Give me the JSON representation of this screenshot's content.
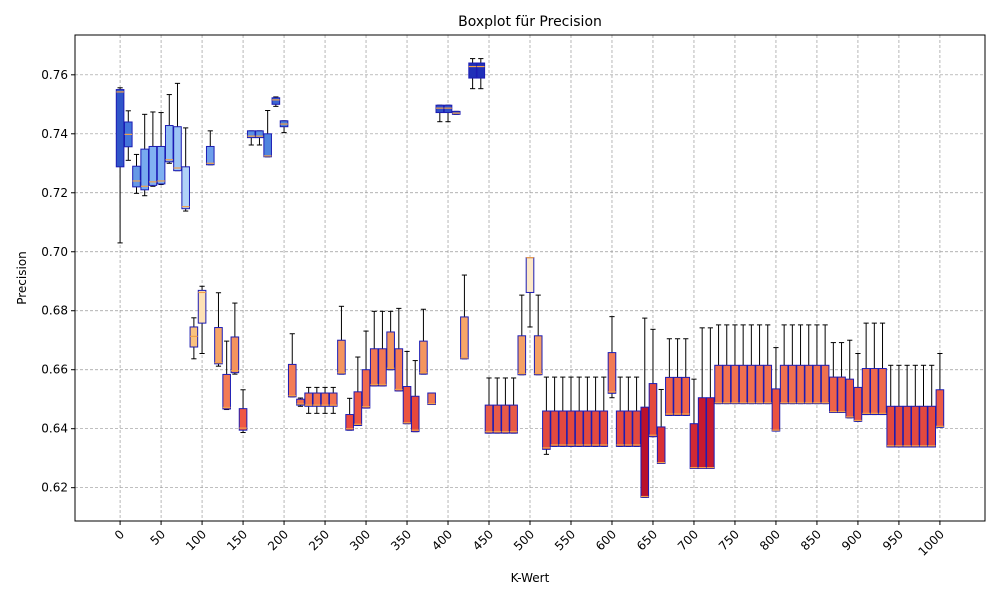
{
  "chart_data": {
    "type": "box",
    "title": "Boxplot für Precision",
    "xlabel": "K-Wert",
    "ylabel": "Precision",
    "xlim": [
      -55,
      1055
    ],
    "ylim": [
      0.6087,
      0.7735
    ],
    "grid": true,
    "x_ticks": [
      0,
      50,
      100,
      150,
      200,
      250,
      300,
      350,
      400,
      450,
      500,
      550,
      600,
      650,
      700,
      750,
      800,
      850,
      900,
      950,
      1000
    ],
    "y_ticks": [
      0.62,
      0.64,
      0.66,
      0.68,
      0.7,
      0.72,
      0.74,
      0.76
    ],
    "y_tick_labels": [
      "0.62",
      "0.64",
      "0.66",
      "0.68",
      "0.70",
      "0.72",
      "0.74",
      "0.76"
    ],
    "colors": {
      "median": "#f2a14b",
      "edge": "#1c1cb4",
      "whisker": "#000000",
      "grid": "#999999"
    },
    "boxes": [
      {
        "x": 0,
        "q1": 0.7288,
        "med": 0.7542,
        "q3": 0.755,
        "wlo": 0.703,
        "whi": 0.7556,
        "color": "#2f55c9"
      },
      {
        "x": 10,
        "q1": 0.7356,
        "med": 0.7398,
        "q3": 0.744,
        "wlo": 0.731,
        "whi": 0.7478,
        "color": "#4475db"
      },
      {
        "x": 20,
        "q1": 0.722,
        "med": 0.724,
        "q3": 0.729,
        "wlo": 0.7198,
        "whi": 0.733,
        "color": "#6699e6"
      },
      {
        "x": 30,
        "q1": 0.721,
        "med": 0.7222,
        "q3": 0.7348,
        "wlo": 0.719,
        "whi": 0.7466,
        "color": "#77aaef"
      },
      {
        "x": 40,
        "q1": 0.7225,
        "med": 0.7237,
        "q3": 0.7357,
        "wlo": 0.7222,
        "whi": 0.7474,
        "color": "#82b2f2"
      },
      {
        "x": 50,
        "q1": 0.723,
        "med": 0.724,
        "q3": 0.7357,
        "wlo": 0.7228,
        "whi": 0.7472,
        "color": "#7fb0f1"
      },
      {
        "x": 60,
        "q1": 0.7305,
        "med": 0.7312,
        "q3": 0.7428,
        "wlo": 0.73,
        "whi": 0.7533,
        "color": "#8fbcf4"
      },
      {
        "x": 70,
        "q1": 0.7275,
        "med": 0.7284,
        "q3": 0.7424,
        "wlo": 0.7275,
        "whi": 0.7571,
        "color": "#9cc4f5"
      },
      {
        "x": 80,
        "q1": 0.7146,
        "med": 0.7153,
        "q3": 0.7288,
        "wlo": 0.7138,
        "whi": 0.742,
        "color": "#b0d2f8"
      },
      {
        "x": 90,
        "q1": 0.6677,
        "med": 0.6713,
        "q3": 0.6745,
        "wlo": 0.6637,
        "whi": 0.6776,
        "color": "#fac27f"
      },
      {
        "x": 100,
        "q1": 0.6758,
        "med": 0.6862,
        "q3": 0.6869,
        "wlo": 0.6655,
        "whi": 0.6883,
        "color": "#fde1b5"
      },
      {
        "x": 110,
        "q1": 0.7295,
        "med": 0.73,
        "q3": 0.7357,
        "wlo": 0.7295,
        "whi": 0.741,
        "color": "#6d9feb"
      },
      {
        "x": 120,
        "q1": 0.662,
        "med": 0.6624,
        "q3": 0.6743,
        "wlo": 0.6612,
        "whi": 0.6861,
        "color": "#f7a668"
      },
      {
        "x": 130,
        "q1": 0.6467,
        "med": 0.6472,
        "q3": 0.6584,
        "wlo": 0.6465,
        "whi": 0.6697,
        "color": "#f37b55"
      },
      {
        "x": 140,
        "q1": 0.659,
        "med": 0.6597,
        "q3": 0.6711,
        "wlo": 0.6585,
        "whi": 0.6826,
        "color": "#f4925e"
      },
      {
        "x": 150,
        "q1": 0.6395,
        "med": 0.6402,
        "q3": 0.6468,
        "wlo": 0.6387,
        "whi": 0.6532,
        "color": "#ef5844"
      },
      {
        "x": 160,
        "q1": 0.7387,
        "med": 0.7392,
        "q3": 0.741,
        "wlo": 0.7362,
        "whi": 0.741,
        "color": "#5a8ee3"
      },
      {
        "x": 170,
        "q1": 0.7387,
        "med": 0.7392,
        "q3": 0.741,
        "wlo": 0.7362,
        "whi": 0.741,
        "color": "#5a8ee3"
      },
      {
        "x": 180,
        "q1": 0.7322,
        "med": 0.7325,
        "q3": 0.74,
        "wlo": 0.7322,
        "whi": 0.7479,
        "color": "#4f84de"
      },
      {
        "x": 190,
        "q1": 0.75,
        "med": 0.7515,
        "q3": 0.7522,
        "wlo": 0.7493,
        "whi": 0.7525,
        "color": "#3a66d3"
      },
      {
        "x": 200,
        "q1": 0.7424,
        "med": 0.7433,
        "q3": 0.7444,
        "wlo": 0.7404,
        "whi": 0.7444,
        "color": "#4b7fdc"
      },
      {
        "x": 210,
        "q1": 0.6508,
        "med": 0.6512,
        "q3": 0.6618,
        "wlo": 0.6508,
        "whi": 0.6722,
        "color": "#f37c56"
      },
      {
        "x": 220,
        "q1": 0.648,
        "med": 0.6484,
        "q3": 0.65,
        "wlo": 0.6476,
        "whi": 0.6504,
        "color": "#f06c4e"
      },
      {
        "x": 230,
        "q1": 0.6476,
        "med": 0.648,
        "q3": 0.6521,
        "wlo": 0.6452,
        "whi": 0.654,
        "color": "#f17150"
      },
      {
        "x": 240,
        "q1": 0.6476,
        "med": 0.648,
        "q3": 0.6521,
        "wlo": 0.6452,
        "whi": 0.654,
        "color": "#f17150"
      },
      {
        "x": 250,
        "q1": 0.6476,
        "med": 0.648,
        "q3": 0.6521,
        "wlo": 0.6452,
        "whi": 0.654,
        "color": "#f17150"
      },
      {
        "x": 260,
        "q1": 0.6476,
        "med": 0.648,
        "q3": 0.6521,
        "wlo": 0.6452,
        "whi": 0.654,
        "color": "#f17150"
      },
      {
        "x": 270,
        "q1": 0.6585,
        "med": 0.659,
        "q3": 0.67,
        "wlo": 0.6585,
        "whi": 0.6815,
        "color": "#f4955f"
      },
      {
        "x": 280,
        "q1": 0.6395,
        "med": 0.64,
        "q3": 0.6448,
        "wlo": 0.6395,
        "whi": 0.6503,
        "color": "#ec4a3f"
      },
      {
        "x": 290,
        "q1": 0.6411,
        "med": 0.6415,
        "q3": 0.6525,
        "wlo": 0.6411,
        "whi": 0.6643,
        "color": "#ee5843"
      },
      {
        "x": 300,
        "q1": 0.647,
        "med": 0.6475,
        "q3": 0.66,
        "wlo": 0.647,
        "whi": 0.6731,
        "color": "#f16a4d"
      },
      {
        "x": 310,
        "q1": 0.6545,
        "med": 0.655,
        "q3": 0.6671,
        "wlo": 0.6545,
        "whi": 0.6798,
        "color": "#f27954"
      },
      {
        "x": 320,
        "q1": 0.6545,
        "med": 0.655,
        "q3": 0.6671,
        "wlo": 0.6545,
        "whi": 0.6798,
        "color": "#f27954"
      },
      {
        "x": 330,
        "q1": 0.66,
        "med": 0.6605,
        "q3": 0.6728,
        "wlo": 0.66,
        "whi": 0.6798,
        "color": "#f49560"
      },
      {
        "x": 340,
        "q1": 0.6528,
        "med": 0.6533,
        "q3": 0.6671,
        "wlo": 0.6528,
        "whi": 0.6808,
        "color": "#f27b55"
      },
      {
        "x": 350,
        "q1": 0.6417,
        "med": 0.642,
        "q3": 0.6543,
        "wlo": 0.6417,
        "whi": 0.6662,
        "color": "#ea5240"
      },
      {
        "x": 360,
        "q1": 0.639,
        "med": 0.6395,
        "q3": 0.651,
        "wlo": 0.639,
        "whi": 0.6631,
        "color": "#e8473c"
      },
      {
        "x": 370,
        "q1": 0.6585,
        "med": 0.659,
        "q3": 0.6697,
        "wlo": 0.6585,
        "whi": 0.6805,
        "color": "#f4955f"
      },
      {
        "x": 380,
        "q1": 0.6482,
        "med": 0.6485,
        "q3": 0.6521,
        "wlo": 0.6482,
        "whi": 0.6521,
        "color": "#f17851"
      },
      {
        "x": 390,
        "q1": 0.7472,
        "med": 0.7487,
        "q3": 0.7497,
        "wlo": 0.7441,
        "whi": 0.7497,
        "color": "#2f4ec8"
      },
      {
        "x": 400,
        "q1": 0.7472,
        "med": 0.7487,
        "q3": 0.7497,
        "wlo": 0.7441,
        "whi": 0.7497,
        "color": "#2f4ec8"
      },
      {
        "x": 410,
        "q1": 0.7466,
        "med": 0.747,
        "q3": 0.7476,
        "wlo": 0.7466,
        "whi": 0.7476,
        "color": "#3558cc"
      },
      {
        "x": 420,
        "q1": 0.6637,
        "med": 0.664,
        "q3": 0.6779,
        "wlo": 0.6637,
        "whi": 0.6921,
        "color": "#f7a668"
      },
      {
        "x": 430,
        "q1": 0.7589,
        "med": 0.7628,
        "q3": 0.764,
        "wlo": 0.7553,
        "whi": 0.7655,
        "color": "#1f2fb8"
      },
      {
        "x": 440,
        "q1": 0.7589,
        "med": 0.7628,
        "q3": 0.764,
        "wlo": 0.7553,
        "whi": 0.7655,
        "color": "#1f2fb8"
      },
      {
        "x": 450,
        "q1": 0.6385,
        "med": 0.639,
        "q3": 0.648,
        "wlo": 0.6385,
        "whi": 0.6572,
        "color": "#e85a48"
      },
      {
        "x": 460,
        "q1": 0.6385,
        "med": 0.639,
        "q3": 0.648,
        "wlo": 0.6385,
        "whi": 0.6572,
        "color": "#e85a48"
      },
      {
        "x": 470,
        "q1": 0.6385,
        "med": 0.639,
        "q3": 0.648,
        "wlo": 0.6385,
        "whi": 0.6572,
        "color": "#e85a48"
      },
      {
        "x": 480,
        "q1": 0.6385,
        "med": 0.639,
        "q3": 0.648,
        "wlo": 0.6385,
        "whi": 0.6572,
        "color": "#e85a48"
      },
      {
        "x": 490,
        "q1": 0.6583,
        "med": 0.6587,
        "q3": 0.6715,
        "wlo": 0.6583,
        "whi": 0.6853,
        "color": "#f5a065"
      },
      {
        "x": 500,
        "q1": 0.6862,
        "med": 0.698,
        "q3": 0.698,
        "wlo": 0.6745,
        "whi": 0.698,
        "color": "#fde9c9"
      },
      {
        "x": 510,
        "q1": 0.6583,
        "med": 0.6587,
        "q3": 0.6715,
        "wlo": 0.6583,
        "whi": 0.6853,
        "color": "#f5a065"
      },
      {
        "x": 520,
        "q1": 0.633,
        "med": 0.6335,
        "q3": 0.646,
        "wlo": 0.6313,
        "whi": 0.6575,
        "color": "#e3493f"
      },
      {
        "x": 530,
        "q1": 0.634,
        "med": 0.6345,
        "q3": 0.646,
        "wlo": 0.634,
        "whi": 0.6575,
        "color": "#e3493f"
      },
      {
        "x": 540,
        "q1": 0.634,
        "med": 0.6345,
        "q3": 0.646,
        "wlo": 0.634,
        "whi": 0.6575,
        "color": "#e3493f"
      },
      {
        "x": 550,
        "q1": 0.634,
        "med": 0.6345,
        "q3": 0.646,
        "wlo": 0.634,
        "whi": 0.6575,
        "color": "#e3493f"
      },
      {
        "x": 560,
        "q1": 0.634,
        "med": 0.6345,
        "q3": 0.646,
        "wlo": 0.634,
        "whi": 0.6575,
        "color": "#e3493f"
      },
      {
        "x": 570,
        "q1": 0.634,
        "med": 0.6345,
        "q3": 0.646,
        "wlo": 0.634,
        "whi": 0.6575,
        "color": "#e3493f"
      },
      {
        "x": 580,
        "q1": 0.634,
        "med": 0.6345,
        "q3": 0.646,
        "wlo": 0.634,
        "whi": 0.6575,
        "color": "#e3493f"
      },
      {
        "x": 590,
        "q1": 0.634,
        "med": 0.6345,
        "q3": 0.646,
        "wlo": 0.634,
        "whi": 0.6575,
        "color": "#e3493f"
      },
      {
        "x": 600,
        "q1": 0.652,
        "med": 0.6525,
        "q3": 0.6658,
        "wlo": 0.6505,
        "whi": 0.678,
        "color": "#f27a55"
      },
      {
        "x": 610,
        "q1": 0.634,
        "med": 0.6345,
        "q3": 0.646,
        "wlo": 0.634,
        "whi": 0.6575,
        "color": "#e3493f"
      },
      {
        "x": 620,
        "q1": 0.634,
        "med": 0.6345,
        "q3": 0.646,
        "wlo": 0.634,
        "whi": 0.6575,
        "color": "#e3493f"
      },
      {
        "x": 630,
        "q1": 0.634,
        "med": 0.6345,
        "q3": 0.646,
        "wlo": 0.634,
        "whi": 0.6575,
        "color": "#e3493f"
      },
      {
        "x": 640,
        "q1": 0.6167,
        "med": 0.617,
        "q3": 0.6473,
        "wlo": 0.6167,
        "whi": 0.6775,
        "color": "#b9112c"
      },
      {
        "x": 650,
        "q1": 0.6373,
        "med": 0.6378,
        "q3": 0.6553,
        "wlo": 0.6373,
        "whi": 0.6737,
        "color": "#e44a3f"
      },
      {
        "x": 660,
        "q1": 0.6282,
        "med": 0.6285,
        "q3": 0.6406,
        "wlo": 0.6282,
        "whi": 0.6533,
        "color": "#d92f35"
      },
      {
        "x": 670,
        "q1": 0.6445,
        "med": 0.645,
        "q3": 0.6574,
        "wlo": 0.6445,
        "whi": 0.6705,
        "color": "#ee6349"
      },
      {
        "x": 680,
        "q1": 0.6445,
        "med": 0.645,
        "q3": 0.6574,
        "wlo": 0.6445,
        "whi": 0.6705,
        "color": "#ee6349"
      },
      {
        "x": 690,
        "q1": 0.6445,
        "med": 0.645,
        "q3": 0.6574,
        "wlo": 0.6445,
        "whi": 0.6705,
        "color": "#ee6349"
      },
      {
        "x": 700,
        "q1": 0.6265,
        "med": 0.6268,
        "q3": 0.6417,
        "wlo": 0.6265,
        "whi": 0.6568,
        "color": "#d12933"
      },
      {
        "x": 710,
        "q1": 0.6265,
        "med": 0.6268,
        "q3": 0.6505,
        "wlo": 0.6265,
        "whi": 0.6742,
        "color": "#c81a2e"
      },
      {
        "x": 720,
        "q1": 0.6265,
        "med": 0.6268,
        "q3": 0.6505,
        "wlo": 0.6265,
        "whi": 0.6742,
        "color": "#c81a2e"
      },
      {
        "x": 730,
        "q1": 0.6485,
        "med": 0.6488,
        "q3": 0.6615,
        "wlo": 0.6485,
        "whi": 0.6752,
        "color": "#f0704f"
      },
      {
        "x": 740,
        "q1": 0.6485,
        "med": 0.6488,
        "q3": 0.6615,
        "wlo": 0.6485,
        "whi": 0.6752,
        "color": "#f0704f"
      },
      {
        "x": 750,
        "q1": 0.6485,
        "med": 0.6488,
        "q3": 0.6615,
        "wlo": 0.6485,
        "whi": 0.6752,
        "color": "#f0704f"
      },
      {
        "x": 760,
        "q1": 0.6485,
        "med": 0.6488,
        "q3": 0.6615,
        "wlo": 0.6485,
        "whi": 0.6752,
        "color": "#f0704f"
      },
      {
        "x": 770,
        "q1": 0.6485,
        "med": 0.6488,
        "q3": 0.6615,
        "wlo": 0.6485,
        "whi": 0.6752,
        "color": "#f0704f"
      },
      {
        "x": 780,
        "q1": 0.6485,
        "med": 0.6488,
        "q3": 0.6615,
        "wlo": 0.6485,
        "whi": 0.6752,
        "color": "#f0704f"
      },
      {
        "x": 790,
        "q1": 0.6485,
        "med": 0.6488,
        "q3": 0.6615,
        "wlo": 0.6485,
        "whi": 0.6752,
        "color": "#f0704f"
      },
      {
        "x": 800,
        "q1": 0.6392,
        "med": 0.6395,
        "q3": 0.6535,
        "wlo": 0.6392,
        "whi": 0.6675,
        "color": "#ea5240"
      },
      {
        "x": 810,
        "q1": 0.6485,
        "med": 0.6488,
        "q3": 0.6615,
        "wlo": 0.6485,
        "whi": 0.6752,
        "color": "#f0704f"
      },
      {
        "x": 820,
        "q1": 0.6485,
        "med": 0.6488,
        "q3": 0.6615,
        "wlo": 0.6485,
        "whi": 0.6752,
        "color": "#f0704f"
      },
      {
        "x": 830,
        "q1": 0.6485,
        "med": 0.6488,
        "q3": 0.6615,
        "wlo": 0.6485,
        "whi": 0.6752,
        "color": "#f0704f"
      },
      {
        "x": 840,
        "q1": 0.6485,
        "med": 0.6488,
        "q3": 0.6615,
        "wlo": 0.6485,
        "whi": 0.6752,
        "color": "#f0704f"
      },
      {
        "x": 850,
        "q1": 0.6485,
        "med": 0.6488,
        "q3": 0.6615,
        "wlo": 0.6485,
        "whi": 0.6752,
        "color": "#f0704f"
      },
      {
        "x": 860,
        "q1": 0.6485,
        "med": 0.6488,
        "q3": 0.6615,
        "wlo": 0.6485,
        "whi": 0.6752,
        "color": "#f0704f"
      },
      {
        "x": 870,
        "q1": 0.6455,
        "med": 0.6458,
        "q3": 0.6575,
        "wlo": 0.6455,
        "whi": 0.6692,
        "color": "#ee6349"
      },
      {
        "x": 880,
        "q1": 0.6455,
        "med": 0.6458,
        "q3": 0.6575,
        "wlo": 0.6455,
        "whi": 0.6692,
        "color": "#ee6349"
      },
      {
        "x": 890,
        "q1": 0.6437,
        "med": 0.644,
        "q3": 0.6568,
        "wlo": 0.6437,
        "whi": 0.67,
        "color": "#ea5847"
      },
      {
        "x": 900,
        "q1": 0.6425,
        "med": 0.6428,
        "q3": 0.654,
        "wlo": 0.6425,
        "whi": 0.6655,
        "color": "#e85444"
      },
      {
        "x": 910,
        "q1": 0.6448,
        "med": 0.6452,
        "q3": 0.6604,
        "wlo": 0.6448,
        "whi": 0.6758,
        "color": "#ef6a4c"
      },
      {
        "x": 920,
        "q1": 0.6448,
        "med": 0.6452,
        "q3": 0.6604,
        "wlo": 0.6448,
        "whi": 0.6758,
        "color": "#ef6a4c"
      },
      {
        "x": 930,
        "q1": 0.6448,
        "med": 0.6452,
        "q3": 0.6604,
        "wlo": 0.6448,
        "whi": 0.6758,
        "color": "#ef6a4c"
      },
      {
        "x": 940,
        "q1": 0.6338,
        "med": 0.6342,
        "q3": 0.6476,
        "wlo": 0.6338,
        "whi": 0.6615,
        "color": "#e3493f"
      },
      {
        "x": 950,
        "q1": 0.6338,
        "med": 0.6342,
        "q3": 0.6476,
        "wlo": 0.6338,
        "whi": 0.6615,
        "color": "#e3493f"
      },
      {
        "x": 960,
        "q1": 0.6338,
        "med": 0.6342,
        "q3": 0.6476,
        "wlo": 0.6338,
        "whi": 0.6615,
        "color": "#e3493f"
      },
      {
        "x": 970,
        "q1": 0.6338,
        "med": 0.6342,
        "q3": 0.6476,
        "wlo": 0.6338,
        "whi": 0.6615,
        "color": "#e3493f"
      },
      {
        "x": 980,
        "q1": 0.6338,
        "med": 0.6342,
        "q3": 0.6476,
        "wlo": 0.6338,
        "whi": 0.6615,
        "color": "#e3493f"
      },
      {
        "x": 990,
        "q1": 0.6338,
        "med": 0.6342,
        "q3": 0.6476,
        "wlo": 0.6338,
        "whi": 0.6615,
        "color": "#e3493f"
      },
      {
        "x": 1000,
        "q1": 0.6405,
        "med": 0.6408,
        "q3": 0.6532,
        "wlo": 0.6405,
        "whi": 0.6655,
        "color": "#ec5a45"
      }
    ]
  }
}
